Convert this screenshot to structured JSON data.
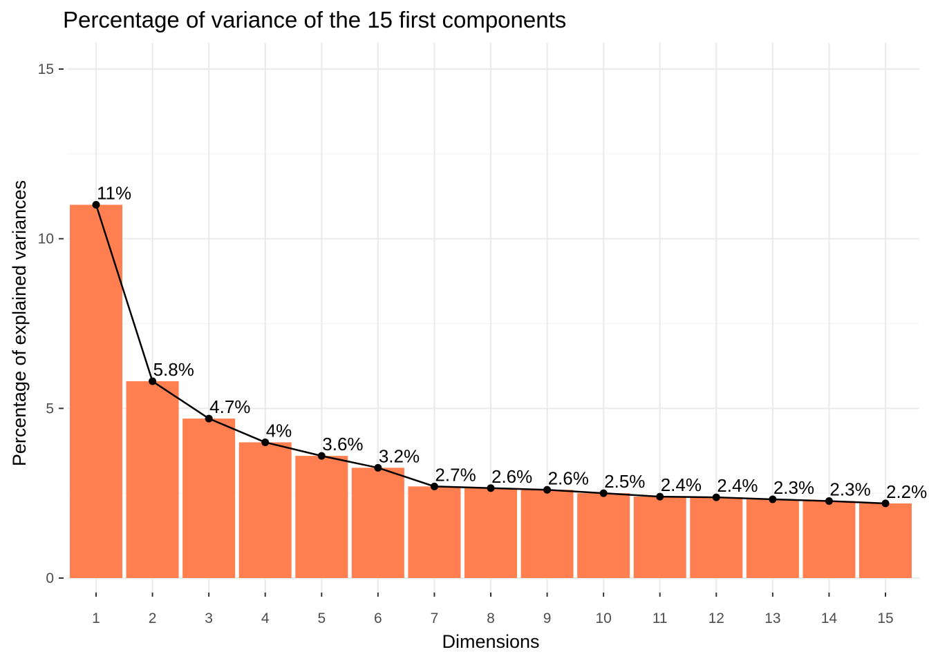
{
  "chart_data": {
    "type": "bar",
    "title": "Percentage of variance of the 15 first components",
    "xlabel": "Dimensions",
    "ylabel": "Percentage of explained variances",
    "categories": [
      "1",
      "2",
      "3",
      "4",
      "5",
      "6",
      "7",
      "8",
      "9",
      "10",
      "11",
      "12",
      "13",
      "14",
      "15"
    ],
    "values": [
      11.0,
      5.8,
      4.7,
      4.0,
      3.6,
      3.25,
      2.7,
      2.65,
      2.6,
      2.5,
      2.4,
      2.38,
      2.32,
      2.27,
      2.2
    ],
    "data_labels": [
      "11%",
      "5.8%",
      "4.7%",
      "4%",
      "3.6%",
      "3.2%",
      "2.7%",
      "2.6%",
      "2.6%",
      "2.5%",
      "2.4%",
      "2.4%",
      "2.3%",
      "2.3%",
      "2.2%"
    ],
    "ylim": [
      0,
      15.6
    ],
    "yticks": [
      0,
      5,
      10,
      15
    ],
    "ytick_labels": [
      "0",
      "5",
      "10",
      "15"
    ],
    "grid": true,
    "legend": "none",
    "overlay": "line with points connecting bar tops",
    "colors": {
      "bar": "#ff7f50",
      "line": "#000000",
      "background": "#ffffff"
    }
  }
}
